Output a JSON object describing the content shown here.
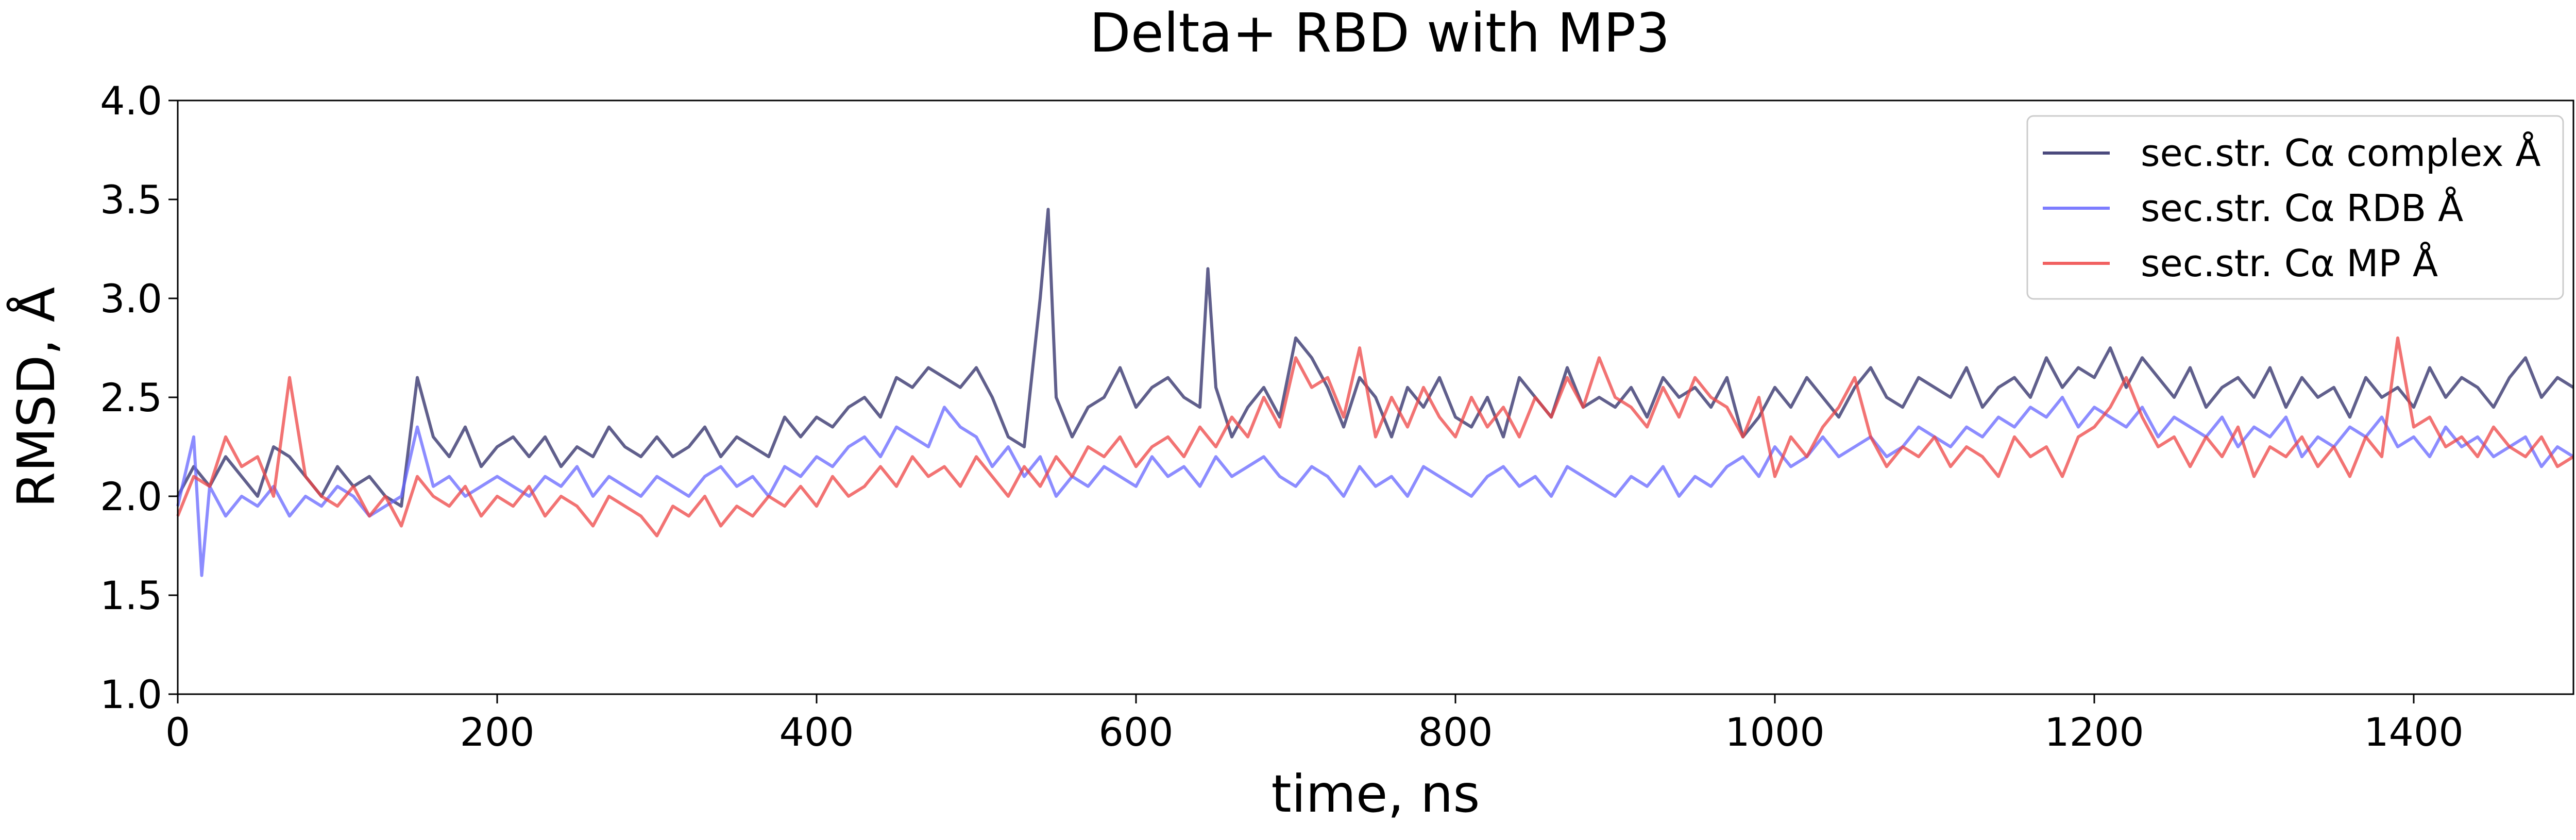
{
  "chart_data": {
    "type": "line",
    "title": "Delta+ RBD with MP3",
    "xlabel": "time, ns",
    "ylabel": "RMSD, Å",
    "xlim": [
      0,
      1500
    ],
    "ylim": [
      1.0,
      4.0
    ],
    "xticks": [
      "0",
      "200",
      "400",
      "600",
      "800",
      "1000",
      "1200",
      "1400"
    ],
    "yticks": [
      "1.0",
      "1.5",
      "2.0",
      "2.5",
      "3.0",
      "3.5",
      "4.0"
    ],
    "grid": false,
    "legend_position": "top-right",
    "series": [
      {
        "name": "sec.str. Cα complex Å",
        "color": "#2b2a66",
        "x": [
          0,
          10,
          20,
          30,
          40,
          50,
          60,
          70,
          80,
          90,
          100,
          110,
          120,
          130,
          140,
          150,
          160,
          170,
          180,
          190,
          200,
          210,
          220,
          230,
          240,
          250,
          260,
          270,
          280,
          290,
          300,
          310,
          320,
          330,
          340,
          350,
          360,
          370,
          380,
          390,
          400,
          410,
          420,
          430,
          440,
          450,
          460,
          470,
          480,
          490,
          500,
          510,
          520,
          530,
          540,
          545,
          550,
          560,
          570,
          580,
          590,
          600,
          610,
          620,
          630,
          640,
          645,
          650,
          660,
          670,
          680,
          690,
          700,
          710,
          720,
          730,
          740,
          750,
          760,
          770,
          780,
          790,
          800,
          810,
          820,
          830,
          840,
          850,
          860,
          870,
          880,
          890,
          900,
          910,
          920,
          930,
          940,
          950,
          960,
          970,
          980,
          990,
          1000,
          1010,
          1020,
          1030,
          1040,
          1050,
          1060,
          1070,
          1080,
          1090,
          1100,
          1110,
          1120,
          1130,
          1140,
          1150,
          1160,
          1170,
          1180,
          1190,
          1200,
          1210,
          1220,
          1230,
          1240,
          1250,
          1260,
          1270,
          1280,
          1290,
          1300,
          1310,
          1320,
          1330,
          1340,
          1350,
          1360,
          1370,
          1380,
          1390,
          1400,
          1410,
          1420,
          1430,
          1440,
          1450,
          1460,
          1470,
          1480,
          1490,
          1500
        ],
        "y": [
          2.0,
          2.15,
          2.05,
          2.2,
          2.1,
          2.0,
          2.25,
          2.2,
          2.1,
          2.0,
          2.15,
          2.05,
          2.1,
          2.0,
          1.95,
          2.6,
          2.3,
          2.2,
          2.35,
          2.15,
          2.25,
          2.3,
          2.2,
          2.3,
          2.15,
          2.25,
          2.2,
          2.35,
          2.25,
          2.2,
          2.3,
          2.2,
          2.25,
          2.35,
          2.2,
          2.3,
          2.25,
          2.2,
          2.4,
          2.3,
          2.4,
          2.35,
          2.45,
          2.5,
          2.4,
          2.6,
          2.55,
          2.65,
          2.6,
          2.55,
          2.65,
          2.5,
          2.3,
          2.25,
          3.0,
          3.45,
          2.5,
          2.3,
          2.45,
          2.5,
          2.65,
          2.45,
          2.55,
          2.6,
          2.5,
          2.45,
          3.15,
          2.55,
          2.3,
          2.45,
          2.55,
          2.4,
          2.8,
          2.7,
          2.55,
          2.35,
          2.6,
          2.5,
          2.3,
          2.55,
          2.45,
          2.6,
          2.4,
          2.35,
          2.5,
          2.3,
          2.6,
          2.5,
          2.4,
          2.65,
          2.45,
          2.5,
          2.45,
          2.55,
          2.4,
          2.6,
          2.5,
          2.55,
          2.45,
          2.6,
          2.3,
          2.4,
          2.55,
          2.45,
          2.6,
          2.5,
          2.4,
          2.55,
          2.65,
          2.5,
          2.45,
          2.6,
          2.55,
          2.5,
          2.65,
          2.45,
          2.55,
          2.6,
          2.5,
          2.7,
          2.55,
          2.65,
          2.6,
          2.75,
          2.55,
          2.7,
          2.6,
          2.5,
          2.65,
          2.45,
          2.55,
          2.6,
          2.5,
          2.65,
          2.45,
          2.6,
          2.5,
          2.55,
          2.4,
          2.6,
          2.5,
          2.55,
          2.45,
          2.65,
          2.5,
          2.6,
          2.55,
          2.45,
          2.6,
          2.7,
          2.5,
          2.6,
          2.55
        ]
      },
      {
        "name": "sec.str. Cα RDB Å",
        "color": "#6666ff",
        "x": [
          0,
          10,
          15,
          20,
          30,
          40,
          50,
          60,
          70,
          80,
          90,
          100,
          110,
          120,
          130,
          140,
          150,
          160,
          170,
          180,
          190,
          200,
          210,
          220,
          230,
          240,
          250,
          260,
          270,
          280,
          290,
          300,
          310,
          320,
          330,
          340,
          350,
          360,
          370,
          380,
          390,
          400,
          410,
          420,
          430,
          440,
          450,
          460,
          470,
          480,
          490,
          500,
          510,
          520,
          530,
          540,
          550,
          560,
          570,
          580,
          590,
          600,
          610,
          620,
          630,
          640,
          650,
          660,
          670,
          680,
          690,
          700,
          710,
          720,
          730,
          740,
          750,
          760,
          770,
          780,
          790,
          800,
          810,
          820,
          830,
          840,
          850,
          860,
          870,
          880,
          890,
          900,
          910,
          920,
          930,
          940,
          950,
          960,
          970,
          980,
          990,
          1000,
          1010,
          1020,
          1030,
          1040,
          1050,
          1060,
          1070,
          1080,
          1090,
          1100,
          1110,
          1120,
          1130,
          1140,
          1150,
          1160,
          1170,
          1180,
          1190,
          1200,
          1210,
          1220,
          1230,
          1240,
          1250,
          1260,
          1270,
          1280,
          1290,
          1300,
          1310,
          1320,
          1330,
          1340,
          1350,
          1360,
          1370,
          1380,
          1390,
          1400,
          1410,
          1420,
          1430,
          1440,
          1450,
          1460,
          1470,
          1480,
          1490,
          1500
        ],
        "y": [
          1.95,
          2.3,
          1.6,
          2.05,
          1.9,
          2.0,
          1.95,
          2.05,
          1.9,
          2.0,
          1.95,
          2.05,
          2.0,
          1.9,
          1.95,
          2.0,
          2.35,
          2.05,
          2.1,
          2.0,
          2.05,
          2.1,
          2.05,
          2.0,
          2.1,
          2.05,
          2.15,
          2.0,
          2.1,
          2.05,
          2.0,
          2.1,
          2.05,
          2.0,
          2.1,
          2.15,
          2.05,
          2.1,
          2.0,
          2.15,
          2.1,
          2.2,
          2.15,
          2.25,
          2.3,
          2.2,
          2.35,
          2.3,
          2.25,
          2.45,
          2.35,
          2.3,
          2.15,
          2.25,
          2.1,
          2.2,
          2.0,
          2.1,
          2.05,
          2.15,
          2.1,
          2.05,
          2.2,
          2.1,
          2.15,
          2.05,
          2.2,
          2.1,
          2.15,
          2.2,
          2.1,
          2.05,
          2.15,
          2.1,
          2.0,
          2.15,
          2.05,
          2.1,
          2.0,
          2.15,
          2.1,
          2.05,
          2.0,
          2.1,
          2.15,
          2.05,
          2.1,
          2.0,
          2.15,
          2.1,
          2.05,
          2.0,
          2.1,
          2.05,
          2.15,
          2.0,
          2.1,
          2.05,
          2.15,
          2.2,
          2.1,
          2.25,
          2.15,
          2.2,
          2.3,
          2.2,
          2.25,
          2.3,
          2.2,
          2.25,
          2.35,
          2.3,
          2.25,
          2.35,
          2.3,
          2.4,
          2.35,
          2.45,
          2.4,
          2.5,
          2.35,
          2.45,
          2.4,
          2.35,
          2.45,
          2.3,
          2.4,
          2.35,
          2.3,
          2.4,
          2.25,
          2.35,
          2.3,
          2.4,
          2.2,
          2.3,
          2.25,
          2.35,
          2.3,
          2.4,
          2.25,
          2.3,
          2.2,
          2.35,
          2.25,
          2.3,
          2.2,
          2.25,
          2.3,
          2.15,
          2.25,
          2.2
        ]
      },
      {
        "name": "sec.str. Cα MP Å",
        "color": "#ee4444",
        "x": [
          0,
          10,
          20,
          30,
          40,
          50,
          60,
          70,
          80,
          90,
          100,
          110,
          120,
          130,
          140,
          150,
          160,
          170,
          180,
          190,
          200,
          210,
          220,
          230,
          240,
          250,
          260,
          270,
          280,
          290,
          300,
          310,
          320,
          330,
          340,
          350,
          360,
          370,
          380,
          390,
          400,
          410,
          420,
          430,
          440,
          450,
          460,
          470,
          480,
          490,
          500,
          510,
          520,
          530,
          540,
          550,
          560,
          570,
          580,
          590,
          600,
          610,
          620,
          630,
          640,
          650,
          660,
          670,
          680,
          690,
          700,
          710,
          720,
          730,
          740,
          750,
          760,
          770,
          780,
          790,
          800,
          810,
          820,
          830,
          840,
          850,
          860,
          870,
          880,
          890,
          900,
          910,
          920,
          930,
          940,
          950,
          960,
          970,
          980,
          990,
          1000,
          1010,
          1020,
          1030,
          1040,
          1050,
          1060,
          1070,
          1080,
          1090,
          1100,
          1110,
          1120,
          1130,
          1140,
          1150,
          1160,
          1170,
          1180,
          1190,
          1200,
          1210,
          1220,
          1230,
          1240,
          1250,
          1260,
          1270,
          1280,
          1290,
          1300,
          1310,
          1320,
          1330,
          1340,
          1350,
          1360,
          1370,
          1380,
          1390,
          1400,
          1410,
          1420,
          1430,
          1440,
          1450,
          1460,
          1470,
          1480,
          1490,
          1500
        ],
        "y": [
          1.9,
          2.1,
          2.05,
          2.3,
          2.15,
          2.2,
          2.0,
          2.6,
          2.1,
          2.0,
          1.95,
          2.05,
          1.9,
          2.0,
          1.85,
          2.1,
          2.0,
          1.95,
          2.05,
          1.9,
          2.0,
          1.95,
          2.05,
          1.9,
          2.0,
          1.95,
          1.85,
          2.0,
          1.95,
          1.9,
          1.8,
          1.95,
          1.9,
          2.0,
          1.85,
          1.95,
          1.9,
          2.0,
          1.95,
          2.05,
          1.95,
          2.1,
          2.0,
          2.05,
          2.15,
          2.05,
          2.2,
          2.1,
          2.15,
          2.05,
          2.2,
          2.1,
          2.0,
          2.15,
          2.05,
          2.2,
          2.1,
          2.25,
          2.2,
          2.3,
          2.15,
          2.25,
          2.3,
          2.2,
          2.35,
          2.25,
          2.4,
          2.3,
          2.5,
          2.35,
          2.7,
          2.55,
          2.6,
          2.4,
          2.75,
          2.3,
          2.5,
          2.35,
          2.55,
          2.4,
          2.3,
          2.5,
          2.35,
          2.45,
          2.3,
          2.5,
          2.4,
          2.6,
          2.45,
          2.7,
          2.5,
          2.45,
          2.35,
          2.55,
          2.4,
          2.6,
          2.5,
          2.45,
          2.3,
          2.5,
          2.1,
          2.3,
          2.2,
          2.35,
          2.45,
          2.6,
          2.3,
          2.15,
          2.25,
          2.2,
          2.3,
          2.15,
          2.25,
          2.2,
          2.1,
          2.3,
          2.2,
          2.25,
          2.1,
          2.3,
          2.35,
          2.45,
          2.6,
          2.4,
          2.25,
          2.3,
          2.15,
          2.3,
          2.2,
          2.35,
          2.1,
          2.25,
          2.2,
          2.3,
          2.15,
          2.25,
          2.1,
          2.3,
          2.2,
          2.8,
          2.35,
          2.4,
          2.25,
          2.3,
          2.2,
          2.35,
          2.25,
          2.2,
          2.3,
          2.15,
          2.2
        ]
      }
    ]
  }
}
